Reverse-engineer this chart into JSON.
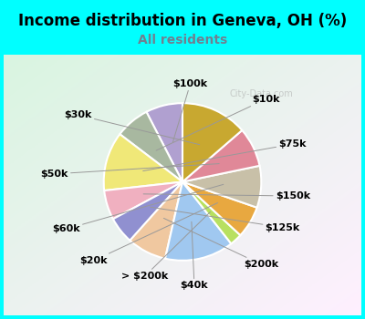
{
  "title": "Income distribution in Geneva, OH (%)",
  "subtitle": "All residents",
  "subtitle_color": "#708090",
  "header_color": "#00ffff",
  "chart_bg_color": "#e8f5ee",
  "watermark": "City-Data.com",
  "labels": [
    "$100k",
    "$10k",
    "$75k",
    "$150k",
    "$125k",
    "$200k",
    "$40k",
    "> $200k",
    "$20k",
    "$60k",
    "$50k",
    "$30k"
  ],
  "values": [
    7.5,
    7.0,
    12.0,
    6.0,
    5.5,
    8.0,
    14.0,
    2.5,
    6.5,
    8.5,
    8.0,
    13.5
  ],
  "colors": [
    "#b0a0d0",
    "#a8b8a0",
    "#f0e878",
    "#f0b0c0",
    "#9090d0",
    "#f0c8a0",
    "#a0c8f0",
    "#b8e060",
    "#e8a840",
    "#c8c0a8",
    "#e08898",
    "#c8a830"
  ],
  "startangle": 90,
  "title_fontsize": 12,
  "subtitle_fontsize": 10,
  "label_fontsize": 8,
  "figwidth": 4.0,
  "figheight": 3.5,
  "dpi": 100
}
